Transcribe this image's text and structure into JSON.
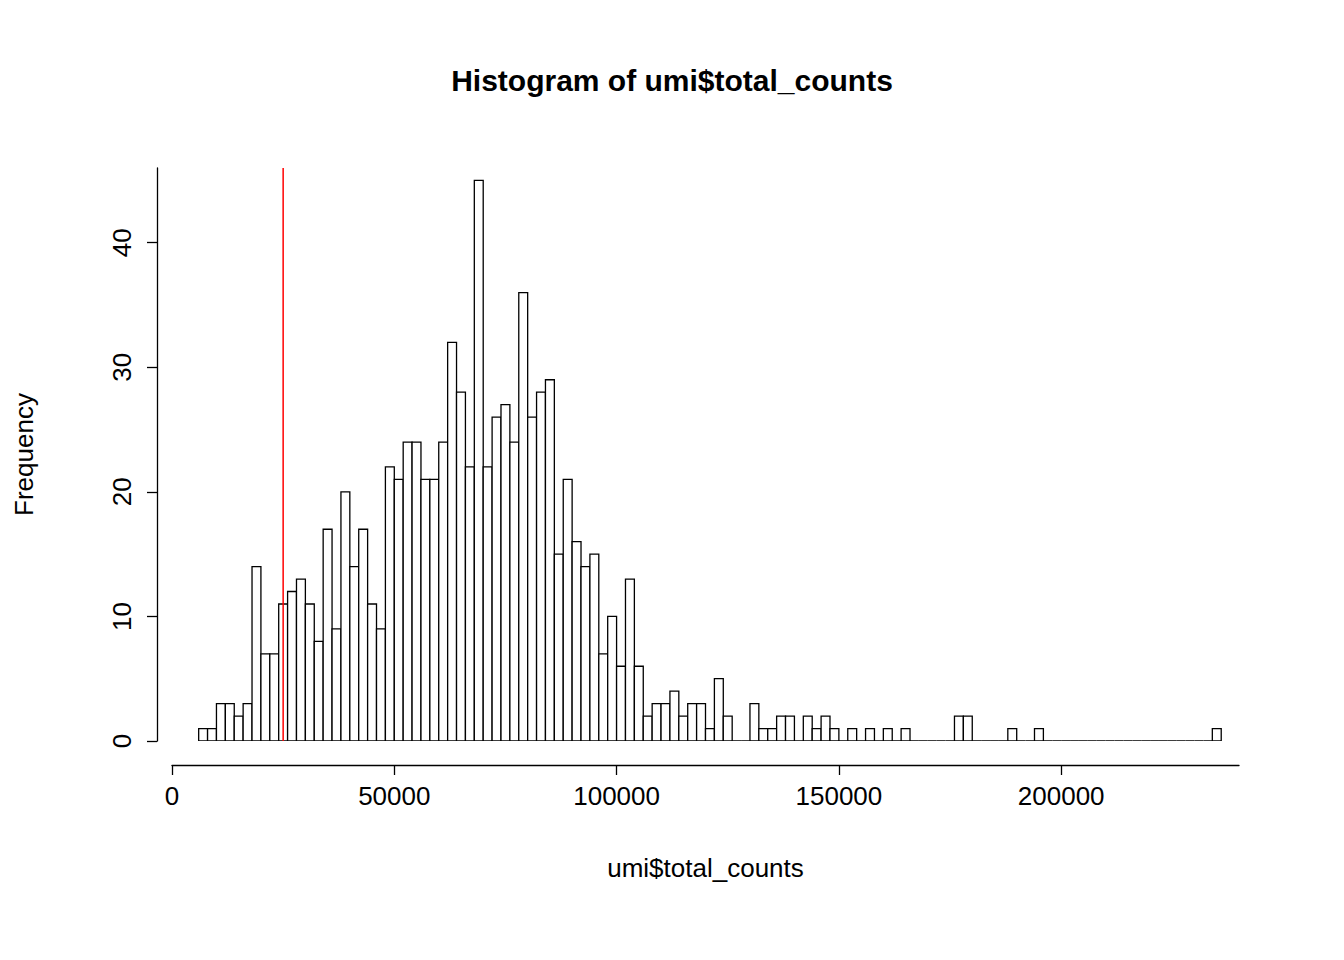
{
  "chart_data": {
    "type": "histogram",
    "title": "Histogram of umi$total_counts",
    "x_label": "umi$total_counts",
    "y_label": "Frequency",
    "bins": [
      6000,
      8000,
      10000,
      12000,
      14000,
      16000,
      18000,
      20000,
      22000,
      24000,
      26000,
      28000,
      30000,
      32000,
      34000,
      36000,
      38000,
      40000,
      42000,
      44000,
      46000,
      48000,
      50000,
      52000,
      54000,
      56000,
      58000,
      60000,
      62000,
      64000,
      66000,
      68000,
      70000,
      72000,
      74000,
      76000,
      78000,
      80000,
      82000,
      84000,
      86000,
      88000,
      90000,
      92000,
      94000,
      96000,
      98000,
      100000,
      102000,
      104000,
      106000,
      108000,
      110000,
      112000,
      114000,
      116000,
      118000,
      120000,
      122000,
      124000,
      126000,
      128000,
      130000,
      132000,
      134000,
      136000,
      138000,
      140000,
      142000,
      144000,
      146000,
      148000,
      150000,
      152000,
      154000,
      156000,
      158000,
      160000,
      162000,
      164000,
      166000,
      168000,
      170000,
      172000,
      174000,
      176000,
      178000,
      180000,
      182000,
      184000,
      186000,
      188000,
      190000,
      192000,
      194000,
      196000,
      198000,
      200000,
      202000,
      204000,
      206000,
      208000,
      210000,
      212000,
      214000,
      216000,
      218000,
      220000,
      222000,
      224000,
      226000,
      228000,
      230000,
      232000,
      234000,
      236000
    ],
    "values": [
      1,
      1,
      3,
      3,
      2,
      3,
      14,
      7,
      7,
      11,
      12,
      13,
      11,
      8,
      17,
      9,
      20,
      14,
      17,
      11,
      9,
      22,
      21,
      24,
      24,
      21,
      21,
      24,
      32,
      28,
      22,
      45,
      22,
      26,
      27,
      24,
      36,
      26,
      28,
      29,
      15,
      21,
      16,
      14,
      15,
      7,
      10,
      6,
      13,
      6,
      2,
      3,
      3,
      4,
      2,
      3,
      3,
      1,
      5,
      2,
      0,
      0,
      3,
      1,
      1,
      2,
      2,
      0,
      2,
      1,
      2,
      1,
      0,
      1,
      0,
      1,
      0,
      1,
      0,
      1,
      0,
      0,
      0,
      0,
      0,
      2,
      2,
      0,
      0,
      0,
      0,
      1,
      0,
      0,
      1,
      0,
      0,
      0,
      0,
      0,
      0,
      0,
      0,
      0,
      0,
      0,
      0,
      0,
      0,
      0,
      0,
      0,
      0,
      0,
      1
    ],
    "color": "#ffffff",
    "vline": {
      "value": 25000,
      "color": "#ff0000"
    },
    "xlim": [
      0,
      240000
    ],
    "xticks": [
      0,
      50000,
      100000,
      150000,
      200000
    ],
    "ylim": [
      0,
      46
    ],
    "yticks": [
      0,
      10,
      20,
      30,
      40
    ],
    "grid": false
  }
}
